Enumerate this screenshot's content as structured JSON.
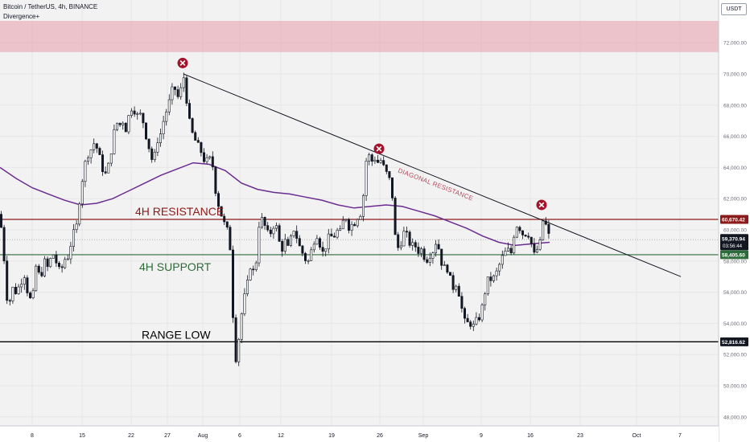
{
  "header": {
    "symbol_title": "Bitcoin / TetherUS, 4h, BINANCE",
    "indicator_name": "Divergence+",
    "currency": "USDT"
  },
  "colors": {
    "background": "#f2f2f2",
    "candle_up": "#ffffff",
    "candle_down": "#131722",
    "candle_outline": "#131722",
    "moving_average": "#6a2c91",
    "resistance_line": "#8b1a1a",
    "support_line": "#2e6b3a",
    "range_low_line": "#000000",
    "trendline": "#131722",
    "supply_zone": "#e8a9b5",
    "marker": "#a3142a",
    "current_price_bg": "#131722"
  },
  "chart_data": {
    "type": "candlestick",
    "instrument": "Bitcoin / TetherUS",
    "timeframe": "4h",
    "exchange": "BINANCE",
    "x_ticks": [
      "8",
      "15",
      "22",
      "27",
      "Aug",
      "6",
      "12",
      "19",
      "26",
      "Sep",
      "9",
      "16",
      "23",
      "Oct",
      "7"
    ],
    "y_ticks": [
      "48,000.00",
      "50,000.00",
      "52,000.00",
      "54,000.00",
      "56,000.00",
      "58,000.00",
      "60,000.00",
      "62,000.00",
      "64,000.00",
      "66,000.00",
      "68,000.00",
      "70,000.00",
      "72,000.00"
    ],
    "ylim": [
      47000,
      73500
    ],
    "price_path": [
      [
        0,
        61000
      ],
      [
        5,
        58200
      ],
      [
        10,
        54800
      ],
      [
        15,
        56300
      ],
      [
        20,
        56000
      ],
      [
        25,
        56500
      ],
      [
        30,
        57200
      ],
      [
        35,
        55800
      ],
      [
        40,
        55300
      ],
      [
        45,
        57800
      ],
      [
        50,
        56800
      ],
      [
        55,
        58000
      ],
      [
        60,
        57500
      ],
      [
        65,
        58600
      ],
      [
        70,
        57900
      ],
      [
        75,
        57200
      ],
      [
        80,
        58100
      ],
      [
        85,
        58300
      ],
      [
        90,
        59600
      ],
      [
        95,
        60200
      ],
      [
        100,
        62500
      ],
      [
        104,
        63800
      ],
      [
        108,
        64800
      ],
      [
        112,
        65000
      ],
      [
        116,
        65600
      ],
      [
        120,
        65300
      ],
      [
        124,
        64600
      ],
      [
        128,
        63800
      ],
      [
        132,
        63500
      ],
      [
        136,
        64400
      ],
      [
        140,
        65600
      ],
      [
        144,
        67000
      ],
      [
        148,
        66600
      ],
      [
        152,
        67100
      ],
      [
        156,
        66400
      ],
      [
        160,
        67300
      ],
      [
        164,
        67900
      ],
      [
        168,
        67600
      ],
      [
        172,
        67200
      ],
      [
        176,
        67500
      ],
      [
        180,
        66300
      ],
      [
        184,
        65600
      ],
      [
        188,
        64500
      ],
      [
        192,
        64700
      ],
      [
        196,
        65800
      ],
      [
        200,
        66200
      ],
      [
        204,
        67200
      ],
      [
        208,
        67800
      ],
      [
        212,
        68500
      ],
      [
        216,
        69400
      ],
      [
        220,
        68400
      ],
      [
        224,
        68800
      ],
      [
        228,
        69900
      ],
      [
        232,
        68300
      ],
      [
        236,
        66700
      ],
      [
        240,
        66000
      ],
      [
        245,
        65500
      ],
      [
        250,
        65000
      ],
      [
        255,
        64300
      ],
      [
        260,
        64600
      ],
      [
        264,
        64200
      ],
      [
        268,
        62500
      ],
      [
        272,
        61500
      ],
      [
        276,
        60800
      ],
      [
        280,
        60200
      ],
      [
        284,
        59800
      ],
      [
        288,
        57800
      ],
      [
        291,
        51300
      ],
      [
        295,
        52200
      ],
      [
        299,
        54200
      ],
      [
        303,
        55500
      ],
      [
        307,
        56400
      ],
      [
        311,
        57700
      ],
      [
        315,
        57300
      ],
      [
        318,
        57800
      ],
      [
        322,
        60400
      ],
      [
        326,
        60700
      ],
      [
        330,
        60100
      ],
      [
        334,
        59600
      ],
      [
        338,
        60000
      ],
      [
        342,
        60600
      ],
      [
        346,
        59400
      ],
      [
        350,
        58700
      ],
      [
        354,
        59300
      ],
      [
        358,
        58800
      ],
      [
        362,
        59500
      ],
      [
        366,
        60200
      ],
      [
        370,
        59200
      ],
      [
        374,
        58700
      ],
      [
        378,
        58300
      ],
      [
        382,
        57800
      ],
      [
        386,
        58500
      ],
      [
        390,
        59300
      ],
      [
        394,
        59700
      ],
      [
        398,
        59000
      ],
      [
        402,
        58400
      ],
      [
        406,
        59200
      ],
      [
        410,
        59700
      ],
      [
        414,
        59400
      ],
      [
        418,
        60000
      ],
      [
        422,
        59700
      ],
      [
        426,
        60500
      ],
      [
        430,
        60800
      ],
      [
        434,
        60100
      ],
      [
        438,
        60400
      ],
      [
        442,
        60500
      ],
      [
        446,
        61100
      ],
      [
        450,
        61000
      ],
      [
        454,
        64300
      ],
      [
        458,
        64800
      ],
      [
        462,
        64400
      ],
      [
        466,
        64600
      ],
      [
        470,
        64300
      ],
      [
        474,
        64500
      ],
      [
        478,
        63800
      ],
      [
        482,
        63500
      ],
      [
        486,
        62900
      ],
      [
        489,
        61400
      ],
      [
        491,
        59600
      ],
      [
        495,
        58800
      ],
      [
        499,
        59300
      ],
      [
        503,
        60000
      ],
      [
        507,
        59400
      ],
      [
        511,
        58900
      ],
      [
        515,
        59100
      ],
      [
        519,
        58600
      ],
      [
        523,
        58800
      ],
      [
        527,
        58300
      ],
      [
        531,
        58100
      ],
      [
        535,
        58500
      ],
      [
        539,
        58700
      ],
      [
        543,
        59500
      ],
      [
        547,
        58200
      ],
      [
        551,
        57500
      ],
      [
        555,
        57700
      ],
      [
        559,
        56900
      ],
      [
        563,
        56300
      ],
      [
        567,
        56600
      ],
      [
        571,
        55800
      ],
      [
        575,
        54600
      ],
      [
        579,
        53800
      ],
      [
        583,
        54200
      ],
      [
        587,
        53700
      ],
      [
        591,
        54100
      ],
      [
        595,
        54300
      ],
      [
        599,
        55000
      ],
      [
        603,
        56100
      ],
      [
        607,
        56900
      ],
      [
        611,
        56800
      ],
      [
        615,
        57000
      ],
      [
        619,
        57500
      ],
      [
        623,
        58100
      ],
      [
        627,
        58500
      ],
      [
        631,
        58700
      ],
      [
        635,
        58500
      ],
      [
        639,
        59800
      ],
      [
        643,
        60400
      ],
      [
        647,
        60000
      ],
      [
        651,
        59600
      ],
      [
        655,
        59900
      ],
      [
        659,
        59500
      ],
      [
        663,
        58300
      ],
      [
        667,
        58700
      ],
      [
        671,
        59100
      ],
      [
        675,
        60700
      ],
      [
        679,
        60200
      ],
      [
        683,
        59400
      ]
    ],
    "ma_path": [
      [
        0,
        64000
      ],
      [
        20,
        63300
      ],
      [
        40,
        62700
      ],
      [
        60,
        62300
      ],
      [
        80,
        61900
      ],
      [
        100,
        61600
      ],
      [
        120,
        61700
      ],
      [
        140,
        62000
      ],
      [
        160,
        62500
      ],
      [
        180,
        63000
      ],
      [
        200,
        63500
      ],
      [
        220,
        63900
      ],
      [
        240,
        64300
      ],
      [
        260,
        64200
      ],
      [
        280,
        63800
      ],
      [
        300,
        63000
      ],
      [
        320,
        62600
      ],
      [
        340,
        62400
      ],
      [
        360,
        62300
      ],
      [
        380,
        62100
      ],
      [
        400,
        61900
      ],
      [
        420,
        61600
      ],
      [
        440,
        61400
      ],
      [
        460,
        61500
      ],
      [
        480,
        61600
      ],
      [
        500,
        61500
      ],
      [
        520,
        61200
      ],
      [
        540,
        60900
      ],
      [
        560,
        60500
      ],
      [
        580,
        60100
      ],
      [
        600,
        59600
      ],
      [
        620,
        59200
      ],
      [
        640,
        59000
      ],
      [
        660,
        59100
      ],
      [
        683,
        59200
      ]
    ],
    "lines": [
      {
        "name": "4H RESISTANCE",
        "value": 60670.42,
        "value_label": "60,670.42"
      },
      {
        "name": "4H SUPPORT",
        "value": 58405.6,
        "value_label": "58,405.60"
      },
      {
        "name": "RANGE LOW",
        "value": 52816.62,
        "value_label": "52,816.62"
      }
    ],
    "current_price": {
      "price": "59,370.94",
      "countdown": "03:56:44",
      "value": 59370.94
    },
    "supply_zone": {
      "from": 71400,
      "to": 73400
    },
    "trendline": {
      "label": "DIAGONAL RESISTANCE",
      "start": [
        228,
        70000
      ],
      "end": [
        846,
        57000
      ]
    },
    "rejection_markers": [
      {
        "x": 227,
        "value": 70700
      },
      {
        "x": 471,
        "value": 65200
      },
      {
        "x": 673,
        "value": 61600
      }
    ]
  }
}
